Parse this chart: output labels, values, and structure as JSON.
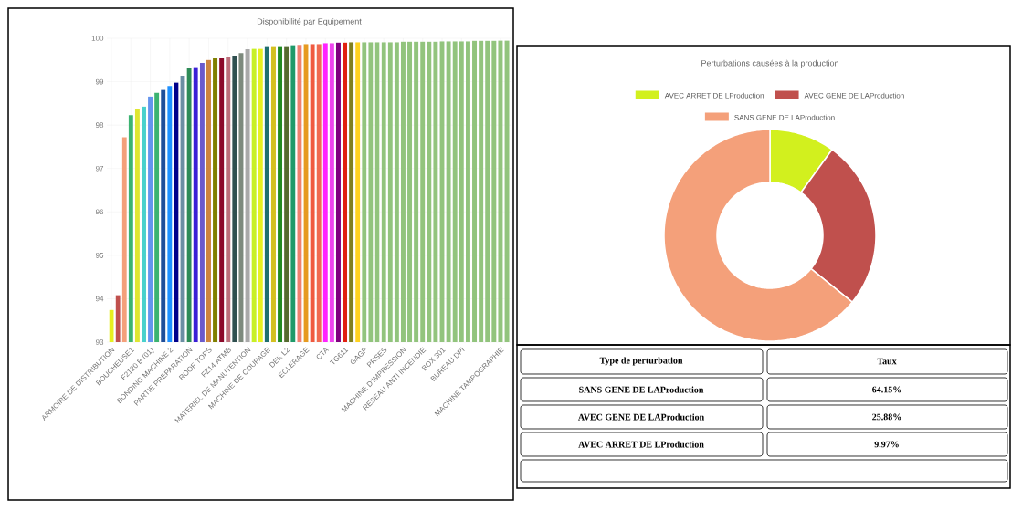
{
  "chart_data": [
    {
      "type": "bar",
      "title": "Disponibilité par Equipement",
      "categories": [
        "ARMOIRE DE DISTRIBUTION",
        null,
        null,
        "BOUCHEUSE1",
        null,
        null,
        "F2120 B (01)",
        null,
        null,
        "BONDING MACHINE 2",
        null,
        null,
        "PARTIE PREPARATION",
        null,
        null,
        "ROOF TOPS",
        null,
        null,
        "FZ14 ATMB",
        null,
        null,
        "MATERIEL DE MANUTENTION",
        null,
        null,
        "MACHINE DE COUPAGE",
        null,
        null,
        "DEK L2",
        null,
        null,
        "ECLERAGE",
        null,
        null,
        "CTA",
        null,
        null,
        "TG611",
        null,
        null,
        "GAGP",
        null,
        null,
        "PRSES",
        null,
        null,
        "MACHINE D'IMPRESSION",
        null,
        null,
        "RESEAU ANTI INCENDIE",
        null,
        null,
        "BOX 301",
        null,
        null,
        "BUREAU DPI",
        null,
        null,
        null,
        null,
        null,
        "MACHINE TAMPOGRAPHIE",
        null
      ],
      "values": [
        93.74,
        94.08,
        97.72,
        98.23,
        98.38,
        98.43,
        98.66,
        98.75,
        98.81,
        98.9,
        98.98,
        99.14,
        99.32,
        99.34,
        99.43,
        99.5,
        99.54,
        99.54,
        99.57,
        99.6,
        99.66,
        99.75,
        99.76,
        99.76,
        99.82,
        99.82,
        99.82,
        99.82,
        99.84,
        99.85,
        99.87,
        99.87,
        99.87,
        99.89,
        99.89,
        99.9,
        99.9,
        99.91,
        99.91,
        99.91,
        99.91,
        99.91,
        99.91,
        99.91,
        99.91,
        99.92,
        99.92,
        99.92,
        99.92,
        99.92,
        99.92,
        99.93,
        99.93,
        99.93,
        99.93,
        99.93,
        99.94,
        99.94,
        99.94,
        99.94,
        99.95,
        99.95
      ],
      "colors": [
        "#e6f020",
        "#c0504d",
        "#f4a07a",
        "#3cb371",
        "#dfe632",
        "#48d1cc",
        "#6495ed",
        "#3cb371",
        "#1f4e9a",
        "#1e90ff",
        "#00008b",
        "#6b8ea3",
        "#2e8b57",
        "#3a1fd6",
        "#6a5acd",
        "#cd853f",
        "#808000",
        "#8b0a2a",
        "#bc6f7a",
        "#2f4f4f",
        "#7d8a7d",
        "#a9a9a9",
        "#c8f026",
        "#e8f020",
        "#1f6f6f",
        "#d4c020",
        "#228b22",
        "#556b2f",
        "#1f9a6a",
        "#f08070",
        "#e69a20",
        "#f05a40",
        "#f06a50",
        "#ff22ff",
        "#ee44ee",
        "#800080",
        "#e02010",
        "#808020",
        "#ffd21f",
        "#92c47d",
        "#92c47d",
        "#92c47d",
        "#92c47d",
        "#92c47d",
        "#92c47d",
        "#92c47d",
        "#92c47d",
        "#92c47d",
        "#92c47d",
        "#92c47d",
        "#92c47d",
        "#92c47d",
        "#92c47d",
        "#92c47d",
        "#92c47d",
        "#92c47d",
        "#92c47d",
        "#92c47d",
        "#92c47d",
        "#92c47d",
        "#92c47d",
        "#92c47d"
      ],
      "ylim": [
        93,
        100
      ],
      "yticks": [
        93,
        94,
        95,
        96,
        97,
        98,
        99,
        100
      ],
      "grid": true
    },
    {
      "type": "donut",
      "title": "Perturbations causées à la production",
      "categories": [
        "AVEC ARRET DE LProduction",
        "AVEC GENE DE LAProduction",
        "SANS GENE DE LAProduction"
      ],
      "values": [
        9.97,
        25.88,
        64.15
      ],
      "colors": [
        "#d2f01e",
        "#c0504d",
        "#f4a07a"
      ],
      "legend": "top"
    },
    {
      "type": "other",
      "categories": [
        "SANS GENE DE LAProduction",
        "AVEC GENE DE LAProduction",
        "AVEC ARRET DE LProduction"
      ],
      "values": [
        64.15,
        25.88,
        9.97
      ],
      "value_labels": [
        "64.15%",
        "25.88%",
        "9.97%"
      ],
      "annotations": [
        "Type de perturbation",
        "Taux"
      ]
    }
  ]
}
